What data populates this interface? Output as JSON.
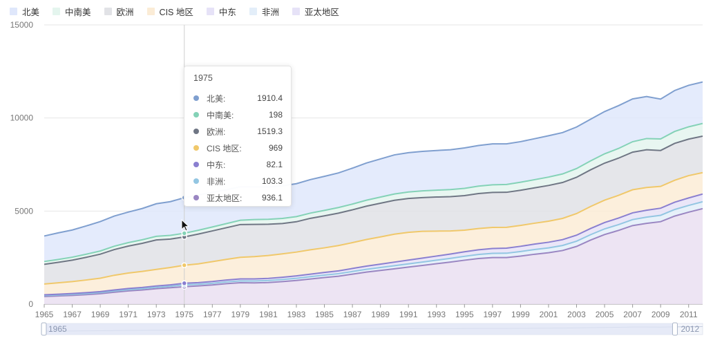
{
  "chart_data": {
    "type": "area",
    "stacked": true,
    "title": "",
    "xlabel": "",
    "ylabel": "",
    "ylim": [
      0,
      15000
    ],
    "yticks": [
      0,
      5000,
      10000,
      15000
    ],
    "x": [
      1965,
      1966,
      1967,
      1968,
      1969,
      1970,
      1971,
      1972,
      1973,
      1974,
      1975,
      1976,
      1977,
      1978,
      1979,
      1980,
      1981,
      1982,
      1983,
      1984,
      1985,
      1986,
      1987,
      1988,
      1989,
      1990,
      1991,
      1992,
      1993,
      1994,
      1995,
      1996,
      1997,
      1998,
      1999,
      2000,
      2001,
      2002,
      2003,
      2004,
      2005,
      2006,
      2007,
      2008,
      2009,
      2010,
      2011,
      2012
    ],
    "xtick_labels": [
      "1965",
      "1967",
      "1969",
      "1971",
      "1973",
      "1975",
      "1977",
      "1979",
      "1981",
      "1983",
      "1985",
      "1987",
      "1989",
      "1991",
      "1993",
      "1995",
      "1997",
      "1999",
      "2001",
      "2003",
      "2005",
      "2007",
      "2009",
      "2011"
    ],
    "grid": true,
    "legend_position": "top-left",
    "series": [
      {
        "name": "亚太地区",
        "color": "#9a86c2",
        "fill": "#eadff1",
        "values": [
          410,
          440,
          470,
          510,
          560,
          640,
          710,
          760,
          830,
          880,
          936.1,
          980,
          1030,
          1100,
          1150,
          1140,
          1160,
          1210,
          1270,
          1350,
          1430,
          1500,
          1610,
          1720,
          1810,
          1900,
          1990,
          2080,
          2170,
          2260,
          2360,
          2450,
          2500,
          2500,
          2580,
          2680,
          2760,
          2880,
          3100,
          3440,
          3740,
          3960,
          4220,
          4340,
          4430,
          4730,
          4940,
          5130
        ]
      },
      {
        "name": "非洲",
        "color": "#93c6e2",
        "fill": "#e3eef9",
        "values": [
          50,
          52,
          55,
          57,
          60,
          64,
          67,
          71,
          74,
          78,
          103.3,
          86,
          90,
          95,
          100,
          104,
          108,
          112,
          118,
          124,
          130,
          136,
          143,
          150,
          158,
          166,
          174,
          182,
          191,
          200,
          209,
          218,
          227,
          236,
          245,
          254,
          263,
          272,
          282,
          292,
          302,
          312,
          322,
          332,
          342,
          352,
          362,
          372
        ]
      },
      {
        "name": "中东",
        "color": "#8a7fd0",
        "fill": "#e6e2f7",
        "values": [
          40,
          43,
          47,
          50,
          54,
          58,
          62,
          67,
          73,
          78,
          82.1,
          88,
          94,
          100,
          106,
          110,
          114,
          120,
          128,
          136,
          144,
          152,
          162,
          172,
          182,
          192,
          202,
          212,
          222,
          232,
          242,
          252,
          262,
          272,
          282,
          292,
          302,
          312,
          322,
          332,
          342,
          352,
          362,
          372,
          382,
          392,
          402,
          412
        ]
      },
      {
        "name": "CIS 地区",
        "color": "#f0c86a",
        "fill": "#fbecd6",
        "values": [
          580,
          610,
          640,
          680,
          720,
          790,
          830,
          860,
          890,
          930,
          969,
          1010,
          1070,
          1110,
          1160,
          1200,
          1230,
          1260,
          1280,
          1310,
          1320,
          1360,
          1390,
          1430,
          1460,
          1500,
          1490,
          1440,
          1340,
          1240,
          1160,
          1140,
          1130,
          1120,
          1120,
          1120,
          1130,
          1140,
          1160,
          1180,
          1200,
          1220,
          1240,
          1220,
          1170,
          1180,
          1200,
          1150
        ]
      },
      {
        "name": "欧洲",
        "color": "#6f7684",
        "fill": "#e1e2e6",
        "values": [
          1060,
          1100,
          1150,
          1220,
          1290,
          1380,
          1450,
          1510,
          1580,
          1530,
          1519.3,
          1600,
          1650,
          1700,
          1760,
          1730,
          1680,
          1630,
          1630,
          1690,
          1720,
          1740,
          1760,
          1790,
          1810,
          1820,
          1820,
          1810,
          1830,
          1840,
          1860,
          1880,
          1880,
          1880,
          1890,
          1900,
          1920,
          1930,
          1950,
          1970,
          1990,
          2000,
          2020,
          2030,
          1930,
          1980,
          1960,
          1960
        ]
      },
      {
        "name": "中南美",
        "color": "#84d2b7",
        "fill": "#e4f5ee",
        "values": [
          150,
          155,
          160,
          165,
          170,
          180,
          185,
          190,
          195,
          198,
          198,
          205,
          210,
          220,
          230,
          260,
          265,
          270,
          275,
          280,
          290,
          300,
          310,
          320,
          330,
          340,
          350,
          360,
          370,
          380,
          390,
          400,
          410,
          420,
          430,
          440,
          450,
          460,
          470,
          480,
          500,
          520,
          560,
          600,
          620,
          640,
          660,
          680
        ]
      },
      {
        "name": "北美",
        "color": "#7f9fcf",
        "fill": "#dfe7fb",
        "values": [
          1370,
          1430,
          1460,
          1520,
          1580,
          1620,
          1640,
          1680,
          1750,
          1810,
          1910.4,
          1900,
          1860,
          1820,
          1800,
          1760,
          1740,
          1750,
          1770,
          1800,
          1830,
          1860,
          1930,
          2000,
          2050,
          2100,
          2110,
          2120,
          2130,
          2140,
          2170,
          2180,
          2200,
          2180,
          2180,
          2200,
          2220,
          2220,
          2230,
          2240,
          2270,
          2300,
          2300,
          2260,
          2140,
          2200,
          2230,
          2230
        ]
      }
    ],
    "tooltip": {
      "title": "1975",
      "rows": [
        {
          "name": "北美:",
          "value": "1910.4",
          "color": "#7f9fcf"
        },
        {
          "name": "中南美:",
          "value": "198",
          "color": "#84d2b7"
        },
        {
          "name": "欧洲:",
          "value": "1519.3",
          "color": "#6f7684"
        },
        {
          "name": "CIS 地区:",
          "value": "969",
          "color": "#f0c86a"
        },
        {
          "name": "中东:",
          "value": "82.1",
          "color": "#8a7fd0"
        },
        {
          "name": "非洲:",
          "value": "103.3",
          "color": "#93c6e2"
        },
        {
          "name": "亚太地区:",
          "value": "936.1",
          "color": "#9a86c2"
        }
      ]
    },
    "hover_x": 1975,
    "datazoom": {
      "start_label": "1965",
      "end_label": "2012"
    }
  },
  "legend": [
    {
      "name": "北美",
      "color": "#dfe7fb"
    },
    {
      "name": "中南美",
      "color": "#e4f5ee"
    },
    {
      "name": "欧洲",
      "color": "#e1e2e6"
    },
    {
      "name": "CIS 地区",
      "color": "#fbecd6"
    },
    {
      "name": "中东",
      "color": "#e6e2f7"
    },
    {
      "name": "非洲",
      "color": "#e3eef9"
    },
    {
      "name": "亚太地区",
      "color": "#e6e2f7"
    }
  ]
}
